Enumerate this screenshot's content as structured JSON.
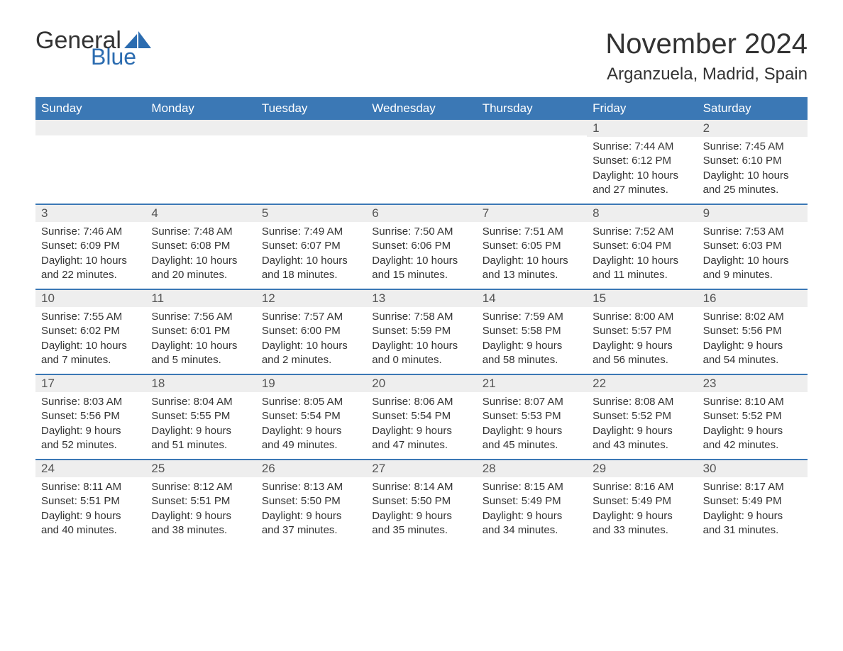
{
  "logo": {
    "general": "General",
    "blue": "Blue",
    "sail_color": "#2b6cb0"
  },
  "header": {
    "month_title": "November 2024",
    "location": "Arganzuela, Madrid, Spain"
  },
  "style": {
    "header_bg": "#3b78b5",
    "header_text": "#ffffff",
    "daynum_bg": "#eeeeee",
    "row_border": "#3b78b5",
    "text_color": "#333333",
    "title_fontsize": 40,
    "location_fontsize": 24,
    "weekday_fontsize": 17,
    "body_fontsize": 15
  },
  "weekdays": [
    "Sunday",
    "Monday",
    "Tuesday",
    "Wednesday",
    "Thursday",
    "Friday",
    "Saturday"
  ],
  "weeks": [
    [
      null,
      null,
      null,
      null,
      null,
      {
        "daynum": "1",
        "sunrise": "Sunrise: 7:44 AM",
        "sunset": "Sunset: 6:12 PM",
        "daylight1": "Daylight: 10 hours",
        "daylight2": "and 27 minutes."
      },
      {
        "daynum": "2",
        "sunrise": "Sunrise: 7:45 AM",
        "sunset": "Sunset: 6:10 PM",
        "daylight1": "Daylight: 10 hours",
        "daylight2": "and 25 minutes."
      }
    ],
    [
      {
        "daynum": "3",
        "sunrise": "Sunrise: 7:46 AM",
        "sunset": "Sunset: 6:09 PM",
        "daylight1": "Daylight: 10 hours",
        "daylight2": "and 22 minutes."
      },
      {
        "daynum": "4",
        "sunrise": "Sunrise: 7:48 AM",
        "sunset": "Sunset: 6:08 PM",
        "daylight1": "Daylight: 10 hours",
        "daylight2": "and 20 minutes."
      },
      {
        "daynum": "5",
        "sunrise": "Sunrise: 7:49 AM",
        "sunset": "Sunset: 6:07 PM",
        "daylight1": "Daylight: 10 hours",
        "daylight2": "and 18 minutes."
      },
      {
        "daynum": "6",
        "sunrise": "Sunrise: 7:50 AM",
        "sunset": "Sunset: 6:06 PM",
        "daylight1": "Daylight: 10 hours",
        "daylight2": "and 15 minutes."
      },
      {
        "daynum": "7",
        "sunrise": "Sunrise: 7:51 AM",
        "sunset": "Sunset: 6:05 PM",
        "daylight1": "Daylight: 10 hours",
        "daylight2": "and 13 minutes."
      },
      {
        "daynum": "8",
        "sunrise": "Sunrise: 7:52 AM",
        "sunset": "Sunset: 6:04 PM",
        "daylight1": "Daylight: 10 hours",
        "daylight2": "and 11 minutes."
      },
      {
        "daynum": "9",
        "sunrise": "Sunrise: 7:53 AM",
        "sunset": "Sunset: 6:03 PM",
        "daylight1": "Daylight: 10 hours",
        "daylight2": "and 9 minutes."
      }
    ],
    [
      {
        "daynum": "10",
        "sunrise": "Sunrise: 7:55 AM",
        "sunset": "Sunset: 6:02 PM",
        "daylight1": "Daylight: 10 hours",
        "daylight2": "and 7 minutes."
      },
      {
        "daynum": "11",
        "sunrise": "Sunrise: 7:56 AM",
        "sunset": "Sunset: 6:01 PM",
        "daylight1": "Daylight: 10 hours",
        "daylight2": "and 5 minutes."
      },
      {
        "daynum": "12",
        "sunrise": "Sunrise: 7:57 AM",
        "sunset": "Sunset: 6:00 PM",
        "daylight1": "Daylight: 10 hours",
        "daylight2": "and 2 minutes."
      },
      {
        "daynum": "13",
        "sunrise": "Sunrise: 7:58 AM",
        "sunset": "Sunset: 5:59 PM",
        "daylight1": "Daylight: 10 hours",
        "daylight2": "and 0 minutes."
      },
      {
        "daynum": "14",
        "sunrise": "Sunrise: 7:59 AM",
        "sunset": "Sunset: 5:58 PM",
        "daylight1": "Daylight: 9 hours",
        "daylight2": "and 58 minutes."
      },
      {
        "daynum": "15",
        "sunrise": "Sunrise: 8:00 AM",
        "sunset": "Sunset: 5:57 PM",
        "daylight1": "Daylight: 9 hours",
        "daylight2": "and 56 minutes."
      },
      {
        "daynum": "16",
        "sunrise": "Sunrise: 8:02 AM",
        "sunset": "Sunset: 5:56 PM",
        "daylight1": "Daylight: 9 hours",
        "daylight2": "and 54 minutes."
      }
    ],
    [
      {
        "daynum": "17",
        "sunrise": "Sunrise: 8:03 AM",
        "sunset": "Sunset: 5:56 PM",
        "daylight1": "Daylight: 9 hours",
        "daylight2": "and 52 minutes."
      },
      {
        "daynum": "18",
        "sunrise": "Sunrise: 8:04 AM",
        "sunset": "Sunset: 5:55 PM",
        "daylight1": "Daylight: 9 hours",
        "daylight2": "and 51 minutes."
      },
      {
        "daynum": "19",
        "sunrise": "Sunrise: 8:05 AM",
        "sunset": "Sunset: 5:54 PM",
        "daylight1": "Daylight: 9 hours",
        "daylight2": "and 49 minutes."
      },
      {
        "daynum": "20",
        "sunrise": "Sunrise: 8:06 AM",
        "sunset": "Sunset: 5:54 PM",
        "daylight1": "Daylight: 9 hours",
        "daylight2": "and 47 minutes."
      },
      {
        "daynum": "21",
        "sunrise": "Sunrise: 8:07 AM",
        "sunset": "Sunset: 5:53 PM",
        "daylight1": "Daylight: 9 hours",
        "daylight2": "and 45 minutes."
      },
      {
        "daynum": "22",
        "sunrise": "Sunrise: 8:08 AM",
        "sunset": "Sunset: 5:52 PM",
        "daylight1": "Daylight: 9 hours",
        "daylight2": "and 43 minutes."
      },
      {
        "daynum": "23",
        "sunrise": "Sunrise: 8:10 AM",
        "sunset": "Sunset: 5:52 PM",
        "daylight1": "Daylight: 9 hours",
        "daylight2": "and 42 minutes."
      }
    ],
    [
      {
        "daynum": "24",
        "sunrise": "Sunrise: 8:11 AM",
        "sunset": "Sunset: 5:51 PM",
        "daylight1": "Daylight: 9 hours",
        "daylight2": "and 40 minutes."
      },
      {
        "daynum": "25",
        "sunrise": "Sunrise: 8:12 AM",
        "sunset": "Sunset: 5:51 PM",
        "daylight1": "Daylight: 9 hours",
        "daylight2": "and 38 minutes."
      },
      {
        "daynum": "26",
        "sunrise": "Sunrise: 8:13 AM",
        "sunset": "Sunset: 5:50 PM",
        "daylight1": "Daylight: 9 hours",
        "daylight2": "and 37 minutes."
      },
      {
        "daynum": "27",
        "sunrise": "Sunrise: 8:14 AM",
        "sunset": "Sunset: 5:50 PM",
        "daylight1": "Daylight: 9 hours",
        "daylight2": "and 35 minutes."
      },
      {
        "daynum": "28",
        "sunrise": "Sunrise: 8:15 AM",
        "sunset": "Sunset: 5:49 PM",
        "daylight1": "Daylight: 9 hours",
        "daylight2": "and 34 minutes."
      },
      {
        "daynum": "29",
        "sunrise": "Sunrise: 8:16 AM",
        "sunset": "Sunset: 5:49 PM",
        "daylight1": "Daylight: 9 hours",
        "daylight2": "and 33 minutes."
      },
      {
        "daynum": "30",
        "sunrise": "Sunrise: 8:17 AM",
        "sunset": "Sunset: 5:49 PM",
        "daylight1": "Daylight: 9 hours",
        "daylight2": "and 31 minutes."
      }
    ]
  ]
}
